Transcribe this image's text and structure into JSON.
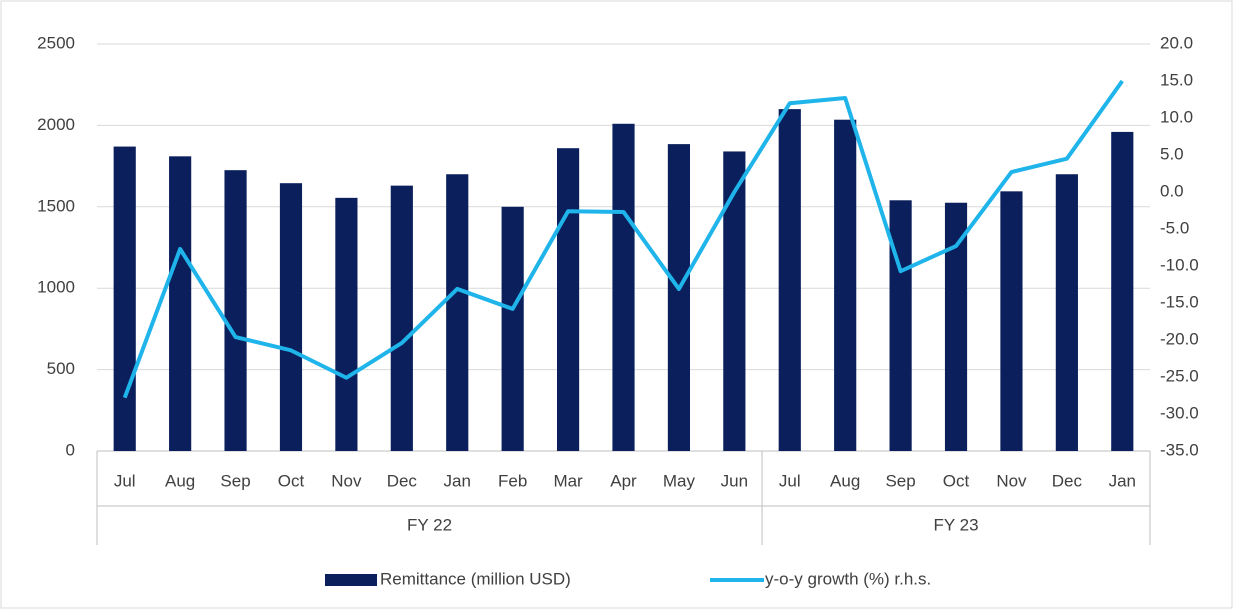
{
  "chart_data": {
    "type": "bar_line",
    "categories": [
      "Jul",
      "Aug",
      "Sep",
      "Oct",
      "Nov",
      "Dec",
      "Jan",
      "Feb",
      "Mar",
      "Apr",
      "May",
      "Jun",
      "Jul",
      "Aug",
      "Sep",
      "Oct",
      "Nov",
      "Dec",
      "Jan"
    ],
    "groups": [
      {
        "label": "FY 22",
        "count": 12
      },
      {
        "label": "FY 23",
        "count": 7
      }
    ],
    "series": [
      {
        "name": "Remittance (million USD)",
        "type": "bar",
        "color": "#0a1f5c",
        "values": [
          1870,
          1810,
          1725,
          1645,
          1555,
          1630,
          1700,
          1500,
          1860,
          2010,
          1885,
          1840,
          2100,
          2035,
          1540,
          1525,
          1595,
          1700,
          1960
        ]
      },
      {
        "name": "y-o-y growth (%) r.h.s.",
        "type": "line",
        "axis": "y2",
        "color": "#1fb4ea",
        "values": [
          -27.8,
          -7.7,
          -19.6,
          -21.4,
          -25.1,
          -20.4,
          -13.1,
          -15.8,
          -2.6,
          -2.7,
          -13.1,
          0.0,
          12.0,
          12.7,
          -10.7,
          -7.3,
          2.7,
          4.5,
          15.0
        ]
      }
    ],
    "ylim": [
      0,
      2500
    ],
    "yticks": [
      0,
      500,
      1000,
      1500,
      2000,
      2500
    ],
    "y2lim": [
      -35,
      20
    ],
    "y2ticks": [
      {
        "value": -35,
        "label": "-35.0"
      },
      {
        "value": -30,
        "label": "-30.0"
      },
      {
        "value": -25,
        "label": "-25.0"
      },
      {
        "value": -20,
        "label": "-20.0"
      },
      {
        "value": -15,
        "label": "-15.0"
      },
      {
        "value": -10,
        "label": "-10.0"
      },
      {
        "value": -5,
        "label": "-5.0"
      },
      {
        "value": 0,
        "label": "0.0"
      },
      {
        "value": 5,
        "label": "5.0"
      },
      {
        "value": 10,
        "label": "10.0"
      },
      {
        "value": 15,
        "label": "15.0"
      },
      {
        "value": 20,
        "label": "20.0"
      }
    ],
    "grid": true,
    "legend": "bottom"
  }
}
